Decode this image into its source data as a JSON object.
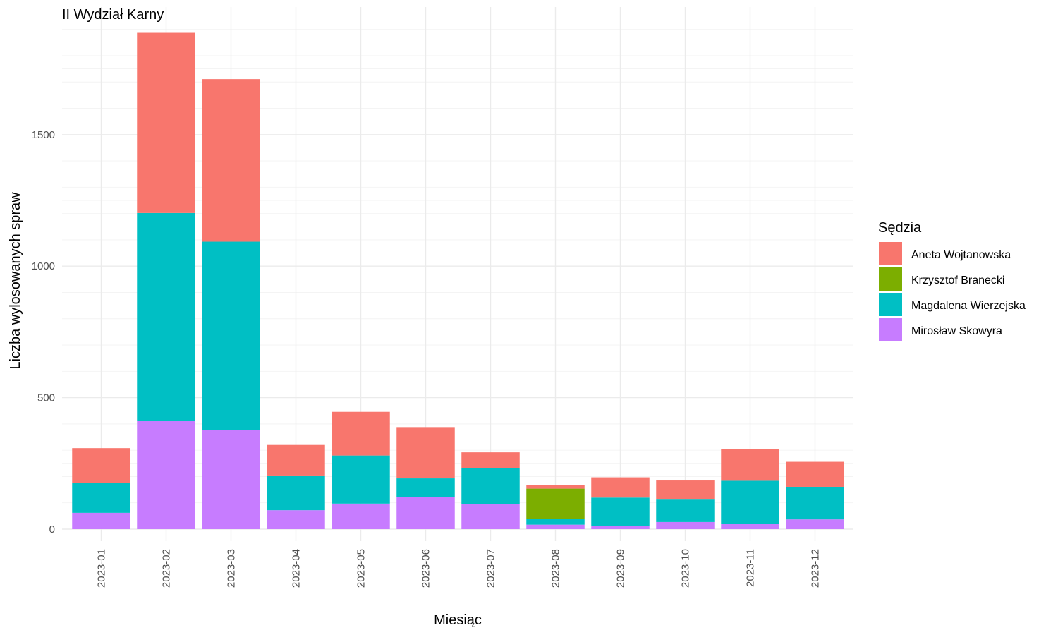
{
  "chart_data": {
    "type": "bar",
    "stacked": true,
    "title": "II Wydział Karny",
    "xlabel": "Miesiąc",
    "ylabel": "Liczba wylosowanych spraw",
    "ylim": [
      0,
      1900
    ],
    "yticks": [
      0,
      500,
      1000,
      1500
    ],
    "grid": true,
    "legend": {
      "title": "Sędzia",
      "position": "right"
    },
    "categories": [
      "2023-01",
      "2023-02",
      "2023-03",
      "2023-04",
      "2023-05",
      "2023-06",
      "2023-07",
      "2023-08",
      "2023-09",
      "2023-10",
      "2023-11",
      "2023-12"
    ],
    "series": [
      {
        "name": "Mirosław Skowyra",
        "color": "#C77CFF",
        "values": [
          62,
          413,
          377,
          72,
          97,
          123,
          95,
          17,
          13,
          27,
          21,
          37
        ]
      },
      {
        "name": "Magdalena Wierzejska",
        "color": "#00BFC4",
        "values": [
          115,
          789,
          716,
          132,
          183,
          70,
          138,
          22,
          107,
          88,
          163,
          124
        ]
      },
      {
        "name": "Krzysztof Branecki",
        "color": "#7CAE00",
        "values": [
          0,
          0,
          0,
          0,
          0,
          0,
          0,
          115,
          0,
          0,
          0,
          0
        ]
      },
      {
        "name": "Aneta Wojtanowska",
        "color": "#F8766D",
        "values": [
          131,
          685,
          618,
          116,
          166,
          195,
          59,
          14,
          77,
          70,
          120,
          95
        ]
      }
    ],
    "legend_order": [
      "Aneta Wojtanowska",
      "Krzysztof Branecki",
      "Magdalena Wierzejska",
      "Mirosław Skowyra"
    ]
  }
}
